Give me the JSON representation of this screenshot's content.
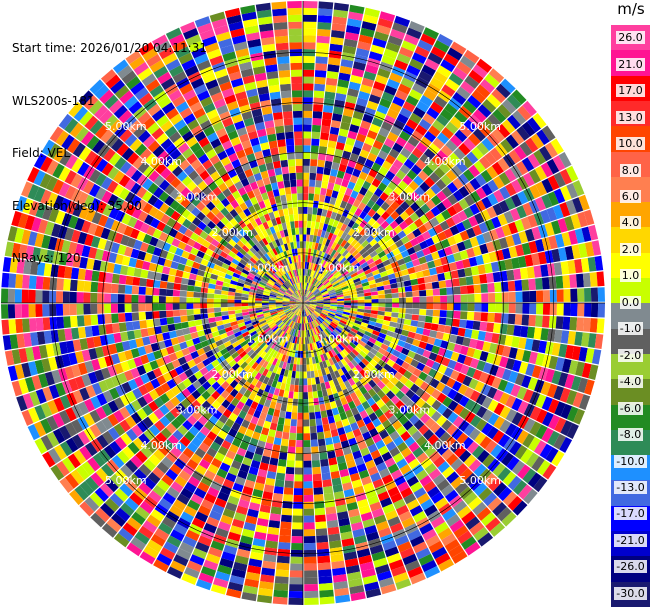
{
  "header": {
    "start_time": "Start time: 2026/01/20 04:11:31",
    "instrument": "WLS200s-181",
    "field": "Field: VEL",
    "elevation": "Elevation(deg): 35.00",
    "nrays": "NRays: 120"
  },
  "colorbar": {
    "unit": "m/s",
    "ticks": [
      "26.0",
      "21.0",
      "17.0",
      "13.0",
      "10.0",
      "8.0",
      "6.0",
      "4.0",
      "2.0",
      "1.0",
      "0.0",
      "-1.0",
      "-2.0",
      "-4.0",
      "-6.0",
      "-8.0",
      "-10.0",
      "-13.0",
      "-17.0",
      "-21.0",
      "-26.0",
      "-30.0"
    ],
    "colors": [
      "#ff3f9f",
      "#ff1493",
      "#ff0000",
      "#ff2a2a",
      "#ff4500",
      "#ff6347",
      "#ff7f50",
      "#ffa500",
      "#ffd700",
      "#ffff00",
      "#c8ff00",
      "#808a90",
      "#606060",
      "#9acd32",
      "#6b8e23",
      "#228b22",
      "#2e8b57",
      "#1e90ff",
      "#4169e1",
      "#0000ff",
      "#0000cd",
      "#000080",
      "#191970"
    ]
  },
  "chart_data": {
    "type": "heatmap",
    "subtype": "ppi-polar",
    "nrays": 120,
    "range_ring_labels": [
      "1.00km",
      "2.00km",
      "3.00km",
      "4.00km",
      "5.00km"
    ],
    "range_rings_km": [
      1,
      2,
      3,
      4,
      5
    ],
    "max_range_km": 5.0,
    "value_range": [
      -30.0,
      26.0
    ],
    "note_colors_palette_keys": "colorbar.colors"
  }
}
